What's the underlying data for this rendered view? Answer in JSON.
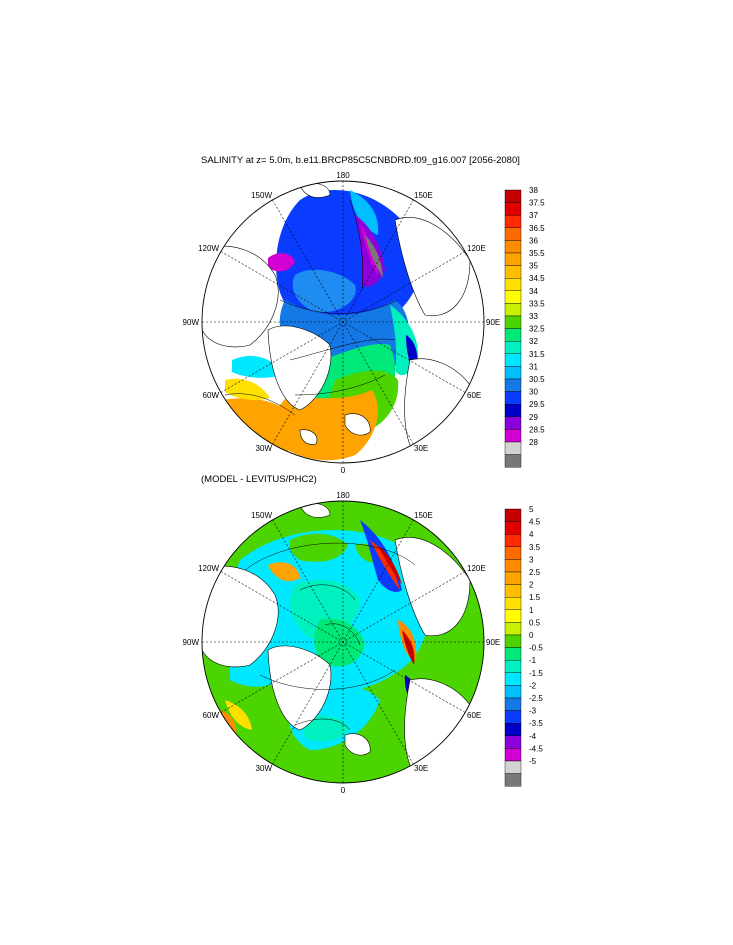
{
  "titles": {
    "top": "SALINITY at z=   5.0m, b.e11.BRCP85C5CNBDRD.f09_g16.007 [2056-2080]",
    "bottom": "(MODEL - LEVITUS/PHC2)"
  },
  "longitude_labels": {
    "lon_180": "180",
    "lon_150E": "150E",
    "lon_120E": "120E",
    "lon_90E": "90E",
    "lon_60E": "60E",
    "lon_30E": "30E",
    "lon_0": "0",
    "lon_30W": "30W",
    "lon_60W": "60W",
    "lon_90W": "90W",
    "lon_120W": "120W",
    "lon_150W": "150W"
  },
  "colorbars": {
    "top": {
      "labels": [
        "38",
        "37.5",
        "37",
        "36.5",
        "36",
        "35.5",
        "35",
        "34.5",
        "34",
        "33.5",
        "33",
        "32.5",
        "32",
        "31.5",
        "31",
        "30.5",
        "30",
        "29.5",
        "29",
        "28.5",
        "28"
      ],
      "colors": [
        "#c40000",
        "#e00000",
        "#ff2a00",
        "#ff6a00",
        "#ff8c00",
        "#ffa300",
        "#ffbe00",
        "#ffe000",
        "#ffff00",
        "#c8f000",
        "#4cd400",
        "#00e878",
        "#00f0c0",
        "#00e8ff",
        "#00bfff",
        "#1478e6",
        "#0a3cff",
        "#0000c8",
        "#8c00dc",
        "#d200d2",
        "#d2d2d2",
        "#787878"
      ]
    },
    "bottom": {
      "labels": [
        "5",
        "4.5",
        "4",
        "3.5",
        "3",
        "2.5",
        "2",
        "1.5",
        "1",
        "0.5",
        "0",
        "-0.5",
        "-1",
        "-1.5",
        "-2",
        "-2.5",
        "-3",
        "-3.5",
        "-4",
        "-4.5",
        "-5"
      ],
      "colors": [
        "#c40000",
        "#e00000",
        "#ff2a00",
        "#ff6a00",
        "#ff8c00",
        "#ffa300",
        "#ffbe00",
        "#ffe000",
        "#ffff00",
        "#c8f000",
        "#4cd400",
        "#00e878",
        "#00f0c0",
        "#00e8ff",
        "#00bfff",
        "#1478e6",
        "#0a3cff",
        "#0000c8",
        "#8c00dc",
        "#d200d2",
        "#d2d2d2",
        "#787878"
      ]
    }
  },
  "colors": {
    "land": "#ffffff",
    "outline": "#000000"
  }
}
